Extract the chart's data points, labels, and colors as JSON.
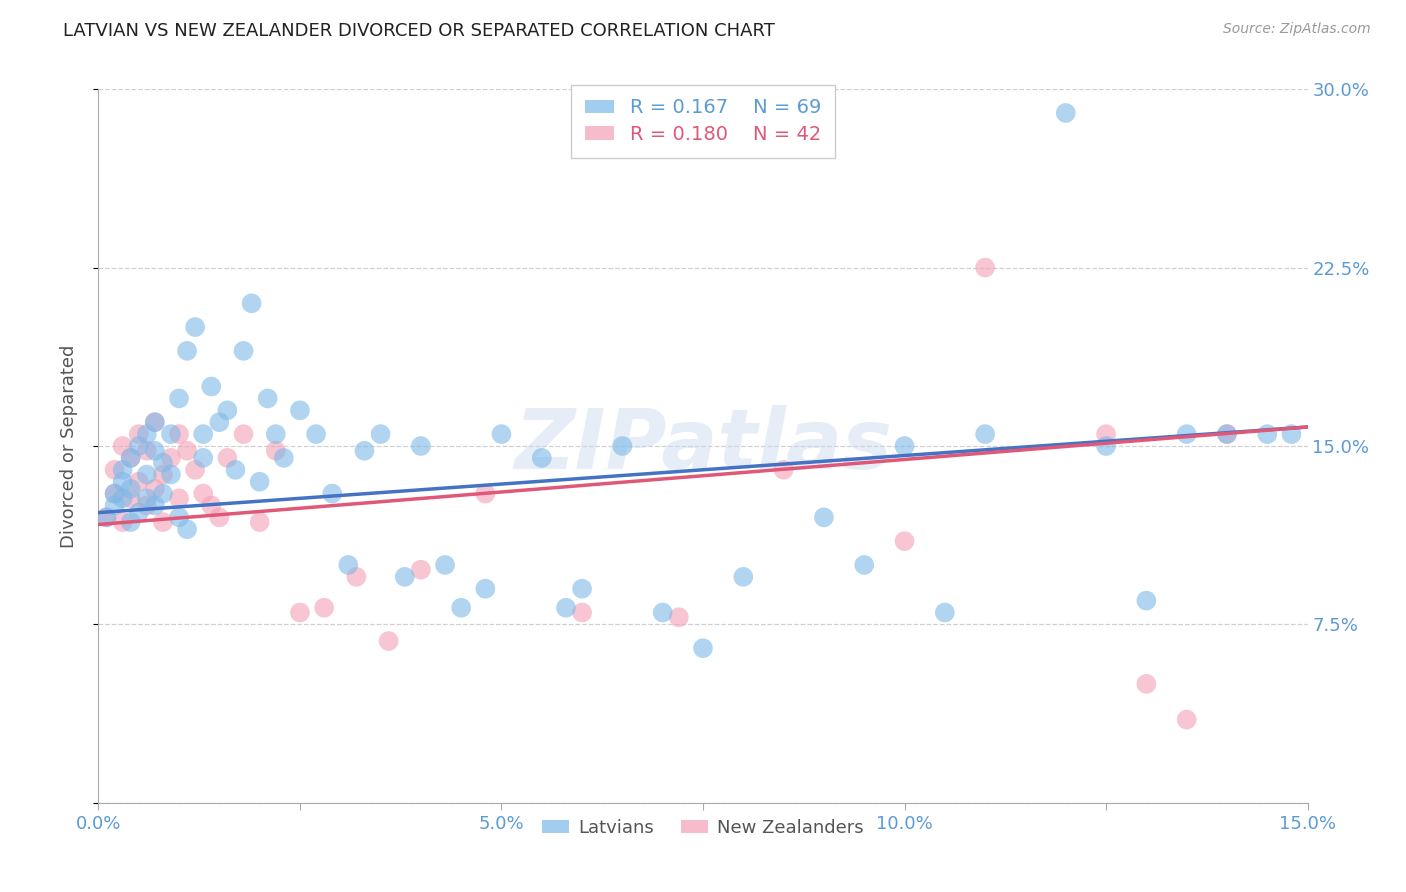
{
  "title": "LATVIAN VS NEW ZEALANDER DIVORCED OR SEPARATED CORRELATION CHART",
  "source": "Source: ZipAtlas.com",
  "ylabel": "Divorced or Separated",
  "xlim": [
    0.0,
    0.15
  ],
  "ylim": [
    0.0,
    0.3
  ],
  "xticks": [
    0.0,
    0.025,
    0.05,
    0.075,
    0.1,
    0.125,
    0.15
  ],
  "xtick_labels": [
    "0.0%",
    "",
    "5.0%",
    "",
    "10.0%",
    "",
    "15.0%"
  ],
  "yticks": [
    0.0,
    0.075,
    0.15,
    0.225,
    0.3
  ],
  "ytick_labels": [
    "",
    "7.5%",
    "15.0%",
    "22.5%",
    "30.0%"
  ],
  "legend_latvian_R": "0.167",
  "legend_latvian_N": "69",
  "legend_nz_R": "0.180",
  "legend_nz_N": "42",
  "blue_color": "#7db8e8",
  "pink_color": "#f4a0b5",
  "line_blue": "#4472c4",
  "line_pink": "#e05878",
  "watermark_text": "ZIPatlas",
  "latvians_x": [
    0.001,
    0.002,
    0.002,
    0.003,
    0.003,
    0.003,
    0.004,
    0.004,
    0.004,
    0.005,
    0.005,
    0.006,
    0.006,
    0.006,
    0.007,
    0.007,
    0.007,
    0.008,
    0.008,
    0.009,
    0.009,
    0.01,
    0.01,
    0.011,
    0.011,
    0.012,
    0.013,
    0.013,
    0.014,
    0.015,
    0.016,
    0.017,
    0.018,
    0.019,
    0.02,
    0.021,
    0.022,
    0.023,
    0.025,
    0.027,
    0.029,
    0.031,
    0.033,
    0.035,
    0.038,
    0.04,
    0.043,
    0.045,
    0.048,
    0.05,
    0.055,
    0.058,
    0.06,
    0.065,
    0.07,
    0.075,
    0.08,
    0.09,
    0.095,
    0.1,
    0.105,
    0.11,
    0.12,
    0.125,
    0.13,
    0.135,
    0.14,
    0.145,
    0.148
  ],
  "latvians_y": [
    0.12,
    0.13,
    0.125,
    0.135,
    0.128,
    0.14,
    0.118,
    0.132,
    0.145,
    0.122,
    0.15,
    0.138,
    0.128,
    0.155,
    0.125,
    0.148,
    0.16,
    0.13,
    0.143,
    0.138,
    0.155,
    0.17,
    0.12,
    0.19,
    0.115,
    0.2,
    0.145,
    0.155,
    0.175,
    0.16,
    0.165,
    0.14,
    0.19,
    0.21,
    0.135,
    0.17,
    0.155,
    0.145,
    0.165,
    0.155,
    0.13,
    0.1,
    0.148,
    0.155,
    0.095,
    0.15,
    0.1,
    0.082,
    0.09,
    0.155,
    0.145,
    0.082,
    0.09,
    0.15,
    0.08,
    0.065,
    0.095,
    0.12,
    0.1,
    0.15,
    0.08,
    0.155,
    0.29,
    0.15,
    0.085,
    0.155,
    0.155,
    0.155,
    0.155
  ],
  "nz_x": [
    0.001,
    0.002,
    0.002,
    0.003,
    0.003,
    0.004,
    0.004,
    0.005,
    0.005,
    0.006,
    0.006,
    0.007,
    0.007,
    0.008,
    0.008,
    0.009,
    0.01,
    0.01,
    0.011,
    0.012,
    0.013,
    0.014,
    0.015,
    0.016,
    0.018,
    0.02,
    0.022,
    0.025,
    0.028,
    0.032,
    0.036,
    0.04,
    0.048,
    0.06,
    0.072,
    0.085,
    0.1,
    0.11,
    0.125,
    0.13,
    0.135,
    0.14
  ],
  "nz_y": [
    0.12,
    0.13,
    0.14,
    0.118,
    0.15,
    0.128,
    0.145,
    0.135,
    0.155,
    0.125,
    0.148,
    0.132,
    0.16,
    0.138,
    0.118,
    0.145,
    0.155,
    0.128,
    0.148,
    0.14,
    0.13,
    0.125,
    0.12,
    0.145,
    0.155,
    0.118,
    0.148,
    0.08,
    0.082,
    0.095,
    0.068,
    0.098,
    0.13,
    0.08,
    0.078,
    0.14,
    0.11,
    0.225,
    0.155,
    0.05,
    0.035,
    0.155
  ],
  "line_lat_x0": 0.0,
  "line_lat_y0": 0.122,
  "line_lat_x1": 0.15,
  "line_lat_y1": 0.158,
  "line_nz_x0": 0.0,
  "line_nz_y0": 0.117,
  "line_nz_x1": 0.15,
  "line_nz_y1": 0.158
}
